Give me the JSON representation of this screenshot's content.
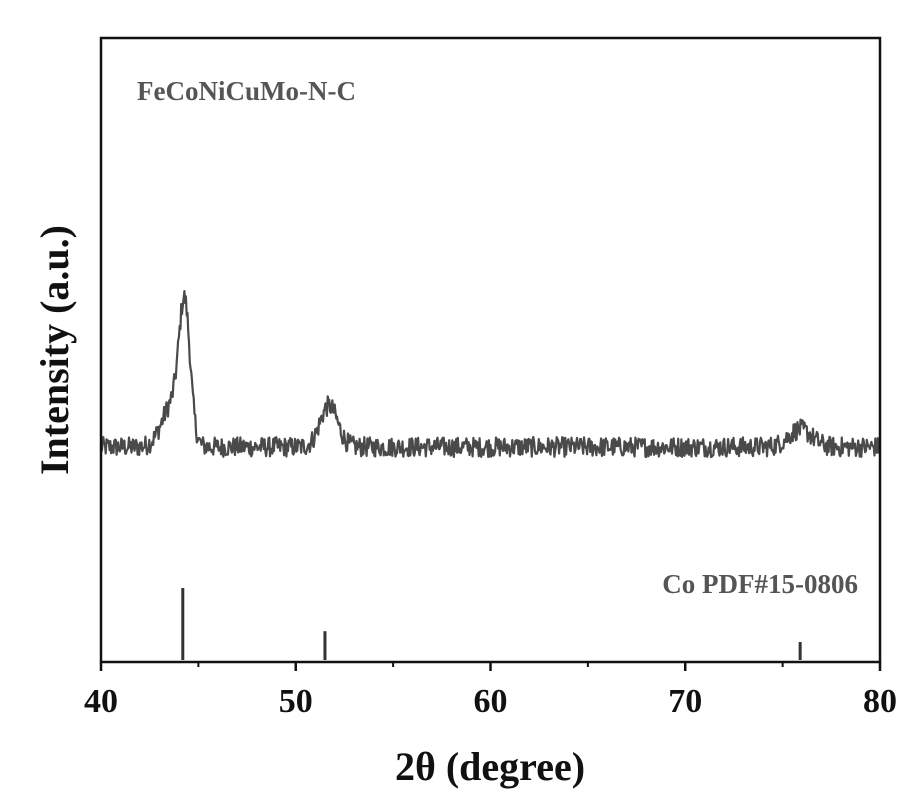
{
  "chart_data": {
    "type": "line",
    "xlabel": "2θ (degree)",
    "ylabel": "Intensity (a.u.)",
    "xlim": [
      40,
      80
    ],
    "xticks": [
      40,
      50,
      60,
      70,
      80
    ],
    "y_tick_labels": false,
    "grid": false,
    "colors": {
      "pattern": "#4a4a4a",
      "reference": "#333333",
      "axes": "#111111"
    },
    "annotations": [
      "FeCoNiCuMo-N-C",
      "Co PDF#15-0806"
    ],
    "series": [
      {
        "name": "FeCoNiCuMo-N-C",
        "style": "noisy-line",
        "baseline": 100,
        "peaks": [
          {
            "x": 44.3,
            "height": 100
          },
          {
            "x": 43.7,
            "height": 35
          },
          {
            "x": 51.7,
            "height": 33
          },
          {
            "x": 75.9,
            "height": 14
          }
        ],
        "noise_amplitude": 8
      },
      {
        "name": "Co PDF#15-0806",
        "style": "sticks",
        "x": [
          44.2,
          51.5,
          75.9
        ],
        "y": [
          100,
          40,
          25
        ]
      }
    ]
  }
}
